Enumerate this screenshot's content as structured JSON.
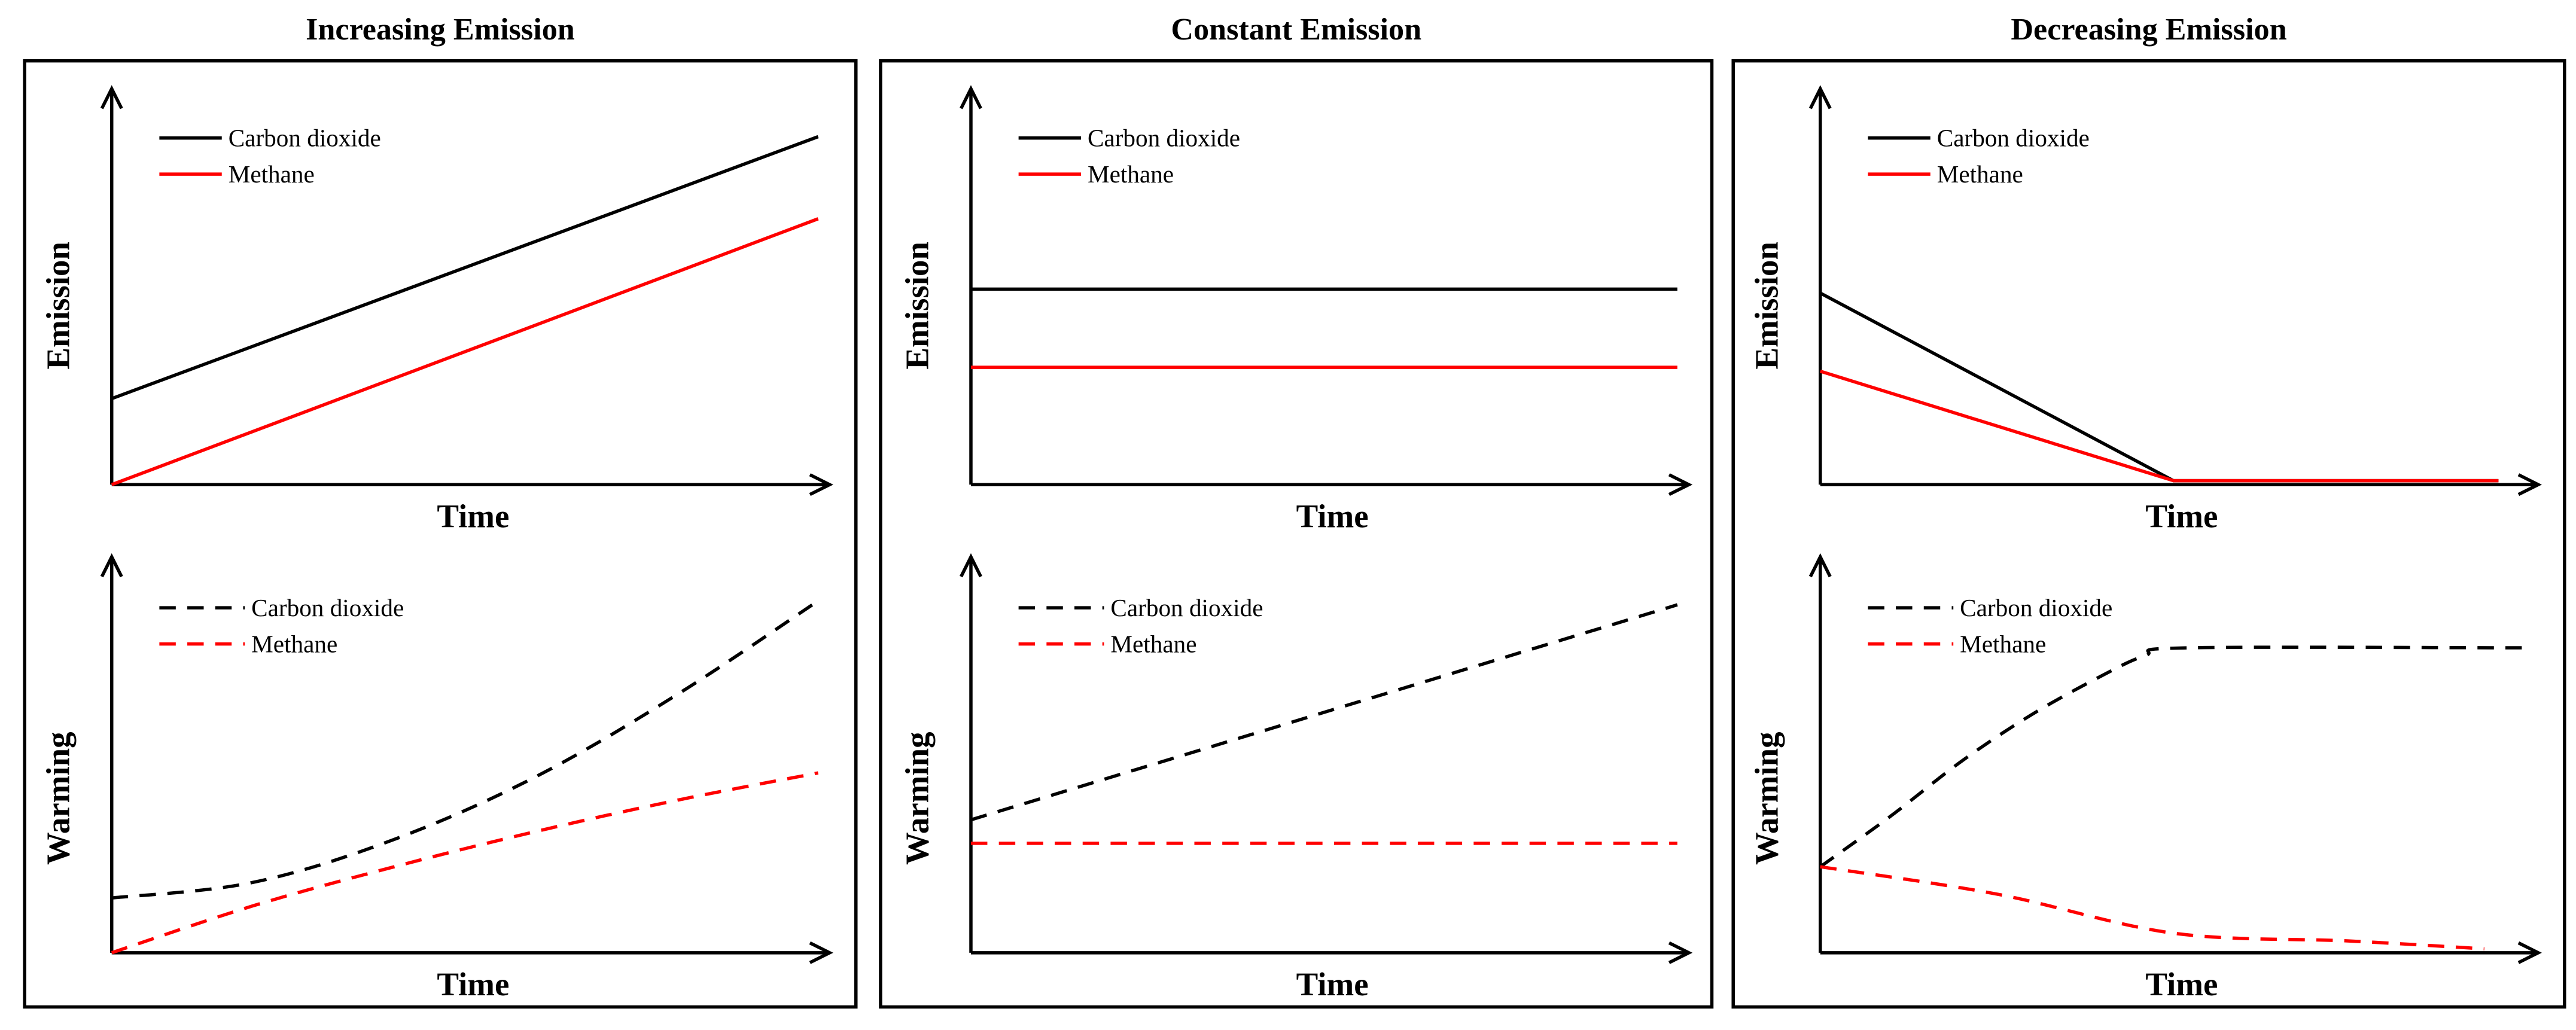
{
  "chart_data": [
    {
      "type": "line",
      "title": "Increasing Emission",
      "charts": [
        {
          "name": "emission",
          "xlabel": "Time",
          "ylabel": "Emission",
          "xlim": [
            0,
            10
          ],
          "ylim": [
            0,
            10
          ],
          "legend": [
            "Carbon dioxide",
            "Methane"
          ],
          "series": [
            {
              "name": "Carbon dioxide",
              "color": "#000000",
              "dashed": false,
              "x": [
                0,
                10
              ],
              "y": [
                2.2,
                8.9
              ]
            },
            {
              "name": "Methane",
              "color": "#ff0000",
              "dashed": false,
              "x": [
                0,
                10
              ],
              "y": [
                0,
                6.8
              ]
            }
          ]
        },
        {
          "name": "warming",
          "xlabel": "Time",
          "ylabel": "Warming",
          "xlim": [
            0,
            10
          ],
          "ylim": [
            0,
            10
          ],
          "legend": [
            "Carbon dioxide",
            "Methane"
          ],
          "series": [
            {
              "name": "Carbon dioxide",
              "color": "#000000",
              "dashed": true,
              "x": [
                0,
                2,
                4,
                6,
                8,
                10
              ],
              "y": [
                1.4,
                1.8,
                2.9,
                4.5,
                6.6,
                9.0
              ]
            },
            {
              "name": "Methane",
              "color": "#ff0000",
              "dashed": true,
              "x": [
                0,
                2,
                4,
                6,
                8,
                10
              ],
              "y": [
                0,
                1.2,
                2.2,
                3.1,
                3.9,
                4.6
              ]
            }
          ]
        }
      ]
    },
    {
      "type": "line",
      "title": "Constant Emission",
      "charts": [
        {
          "name": "emission",
          "xlabel": "Time",
          "ylabel": "Emission",
          "xlim": [
            0,
            10
          ],
          "ylim": [
            0,
            10
          ],
          "legend": [
            "Carbon dioxide",
            "Methane"
          ],
          "series": [
            {
              "name": "Carbon dioxide",
              "color": "#000000",
              "dashed": false,
              "x": [
                0,
                10
              ],
              "y": [
                5.0,
                5.0
              ]
            },
            {
              "name": "Methane",
              "color": "#ff0000",
              "dashed": false,
              "x": [
                0,
                10
              ],
              "y": [
                3.0,
                3.0
              ]
            }
          ]
        },
        {
          "name": "warming",
          "xlabel": "Time",
          "ylabel": "Warming",
          "xlim": [
            0,
            10
          ],
          "ylim": [
            0,
            10
          ],
          "legend": [
            "Carbon dioxide",
            "Methane"
          ],
          "series": [
            {
              "name": "Carbon dioxide",
              "color": "#000000",
              "dashed": true,
              "x": [
                0,
                10
              ],
              "y": [
                3.4,
                8.9
              ]
            },
            {
              "name": "Methane",
              "color": "#ff0000",
              "dashed": true,
              "x": [
                0,
                10
              ],
              "y": [
                2.8,
                2.8
              ]
            }
          ]
        }
      ]
    },
    {
      "type": "line",
      "title": "Decreasing Emission",
      "charts": [
        {
          "name": "emission",
          "xlabel": "Time",
          "ylabel": "Emission",
          "xlim": [
            0,
            10
          ],
          "ylim": [
            0,
            10
          ],
          "legend": [
            "Carbon dioxide",
            "Methane"
          ],
          "series": [
            {
              "name": "Carbon dioxide",
              "color": "#000000",
              "dashed": false,
              "x": [
                0,
                5,
                9.6
              ],
              "y": [
                4.9,
                0.1,
                0.1
              ]
            },
            {
              "name": "Methane",
              "color": "#ff0000",
              "dashed": false,
              "x": [
                0,
                5,
                9.6
              ],
              "y": [
                2.9,
                0.1,
                0.1
              ]
            }
          ]
        },
        {
          "name": "warming",
          "xlabel": "Time",
          "ylabel": "Warming",
          "xlim": [
            0,
            10
          ],
          "ylim": [
            0,
            10
          ],
          "legend": [
            "Carbon dioxide",
            "Methane"
          ],
          "series": [
            {
              "name": "Carbon dioxide",
              "color": "#000000",
              "dashed": true,
              "x": [
                0,
                1,
                2,
                3,
                4,
                4.6,
                5.2,
                10
              ],
              "y": [
                2.2,
                3.5,
                4.9,
                6.1,
                7.1,
                7.6,
                7.8,
                7.8
              ]
            },
            {
              "name": "Methane",
              "color": "#ff0000",
              "dashed": true,
              "x": [
                0,
                2.5,
                5,
                7.5,
                9.4
              ],
              "y": [
                2.2,
                1.5,
                0.5,
                0.3,
                0.1
              ]
            }
          ]
        }
      ]
    }
  ]
}
